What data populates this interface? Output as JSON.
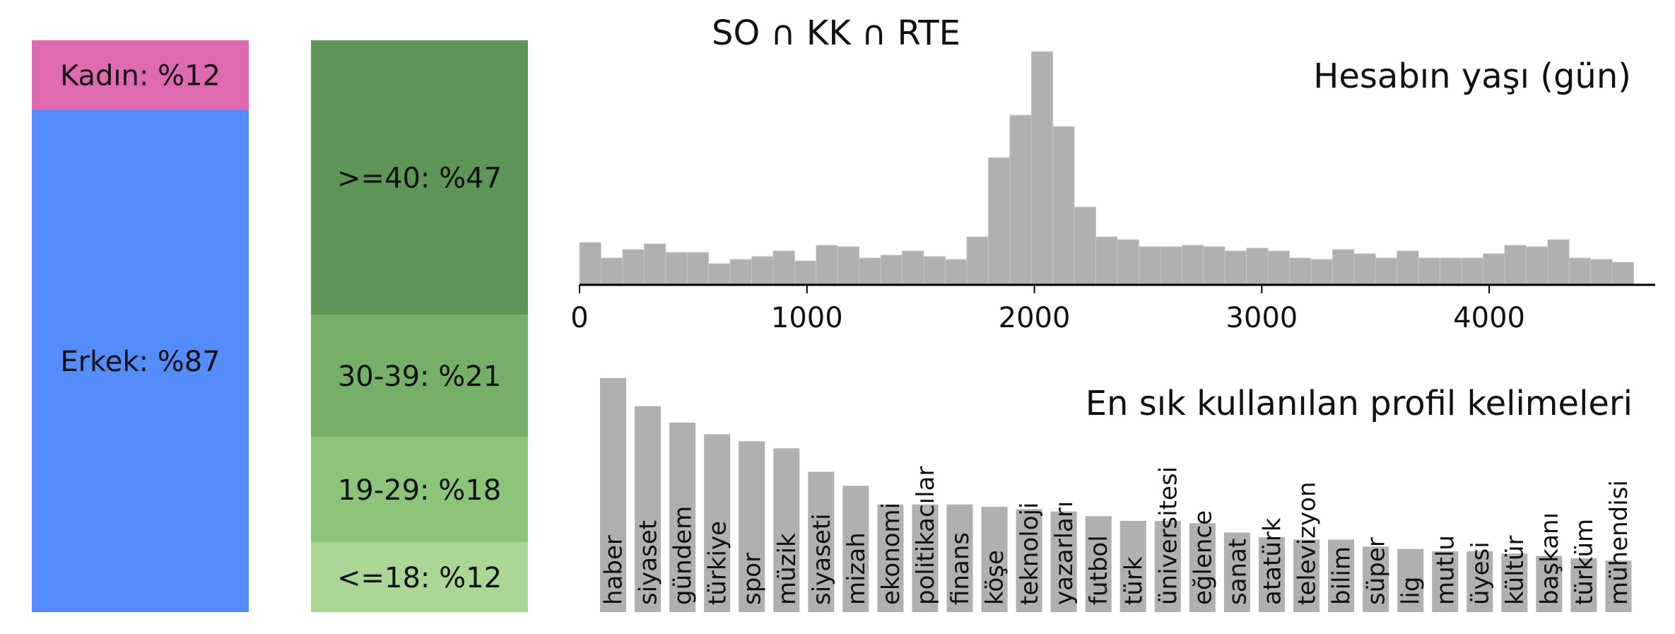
{
  "chart_data": [
    {
      "type": "bar",
      "stacked": true,
      "title": "",
      "categories": [
        "Kadın",
        "Erkek"
      ],
      "labels": [
        "Kadın: %12",
        "Erkek: %87"
      ],
      "values": [
        12,
        87
      ],
      "colors": [
        "#e06ab0",
        "#558cfc"
      ]
    },
    {
      "type": "bar",
      "stacked": true,
      "title": "",
      "categories": [
        ">=40",
        "30-39",
        "19-29",
        "<=18"
      ],
      "labels": [
        ">=40: %47",
        "30-39: %21",
        "19-29: %18",
        "<=18: %12"
      ],
      "values": [
        47,
        21,
        18,
        12
      ],
      "colors": [
        "#5e9657",
        "#75af68",
        "#8cc47a",
        "#abd696"
      ]
    },
    {
      "type": "bar",
      "subtype": "histogram",
      "suptitle": "SO ∩ KK ∩ RTE",
      "title": "Hesabın yaşı (gün)",
      "xlabel": "",
      "ylabel": "",
      "xlim": [
        0,
        4730
      ],
      "xticks": [
        0,
        1000,
        2000,
        3000,
        4000
      ],
      "xtick_labels": [
        "0",
        "1000",
        "2000",
        "3000",
        "4000"
      ],
      "bin_width": 94.6,
      "values": [
        30,
        19,
        25,
        29,
        23,
        23,
        15,
        18,
        20,
        24,
        17,
        28,
        27,
        19,
        21,
        24,
        20,
        18,
        34,
        90,
        120,
        165,
        112,
        55,
        34,
        32,
        27,
        27,
        28,
        27,
        24,
        26,
        24,
        19,
        18,
        25,
        22,
        19,
        24,
        19,
        19,
        19,
        22,
        28,
        27,
        32,
        19,
        18,
        16
      ],
      "color": "#b0b0b0",
      "grid": false
    },
    {
      "type": "bar",
      "title": "En sık kullanılan profil kelimeleri",
      "xlabel": "",
      "ylabel": "",
      "categories": [
        "haber",
        "siyaset",
        "gündem",
        "türkiye",
        "spor",
        "müzik",
        "siyaseti",
        "mizah",
        "ekonomi",
        "politikacılar",
        "finans",
        "köşe",
        "teknoloji",
        "yazarları",
        "futbol",
        "türk",
        "üniversitesi",
        "eğlence",
        "sanat",
        "atatürk",
        "televizyon",
        "bilim",
        "süper",
        "lig",
        "mutlu",
        "üyesi",
        "kültür",
        "başkanı",
        "türküm",
        "mühendisi"
      ],
      "values": [
        100,
        88,
        81,
        76,
        73,
        70,
        60,
        54,
        46,
        46,
        46,
        45,
        44,
        43,
        41,
        39,
        39,
        38,
        34,
        32,
        31,
        31,
        28,
        27,
        26,
        26,
        25,
        24,
        23,
        22
      ],
      "color": "#b0b0b0",
      "grid": false
    }
  ]
}
